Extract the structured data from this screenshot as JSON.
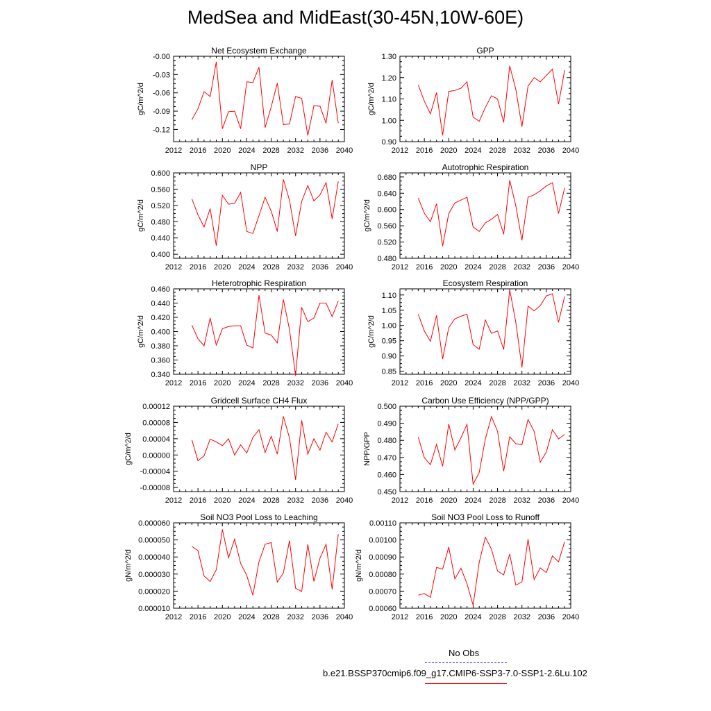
{
  "title": "MedSea and MidEast(30-45N,10W-60E)",
  "legend": {
    "obs_label": "No Obs",
    "obs_color": "#3a3aff",
    "sim_label": "b.e21.BSSP370cmip6.f09_g17.CMIP6-SSP3-7.0-SSP1-2.6Lu.102",
    "sim_color": "#ff0000"
  },
  "chart_data": [
    {
      "type": "line",
      "title": "Net Ecosystem Exchange",
      "ylabel": "gC/m^2/d",
      "xlim": [
        2012,
        2040
      ],
      "x_ticks": [
        "2012",
        "2016",
        "2020",
        "2024",
        "2028",
        "2032",
        "2036",
        "2040"
      ],
      "ylim": [
        -0.14,
        0.0
      ],
      "y_ticks": [
        "-0.00",
        "-0.03",
        "-0.06",
        "-0.09",
        "-0.12"
      ],
      "y_tick_values": [
        0.0,
        -0.03,
        -0.06,
        -0.09,
        -0.12
      ],
      "series": [
        {
          "color": "#ff0000",
          "x": [
            2015,
            2016,
            2017,
            2018,
            2019,
            2020,
            2021,
            2022,
            2023,
            2024,
            2025,
            2026,
            2027,
            2028,
            2029,
            2030,
            2031,
            2032,
            2033,
            2034,
            2035,
            2036,
            2037,
            2038,
            2039
          ],
          "values": [
            -0.104,
            -0.086,
            -0.058,
            -0.066,
            -0.009,
            -0.119,
            -0.091,
            -0.09,
            -0.119,
            -0.042,
            -0.043,
            -0.018,
            -0.117,
            -0.083,
            -0.044,
            -0.112,
            -0.111,
            -0.066,
            -0.069,
            -0.13,
            -0.081,
            -0.082,
            -0.11,
            -0.039,
            -0.11
          ]
        }
      ]
    },
    {
      "type": "line",
      "title": "GPP",
      "ylabel": "gC/m^2/d",
      "xlim": [
        2012,
        2040
      ],
      "x_ticks": [
        "2012",
        "2016",
        "2020",
        "2024",
        "2028",
        "2032",
        "2036",
        "2040"
      ],
      "ylim": [
        0.9,
        1.3
      ],
      "y_ticks": [
        "1.30",
        "1.20",
        "1.10",
        "1.00",
        "0.90"
      ],
      "y_tick_values": [
        1.3,
        1.2,
        1.1,
        1.0,
        0.9
      ],
      "series": [
        {
          "color": "#ff0000",
          "x": [
            2015,
            2016,
            2017,
            2018,
            2019,
            2020,
            2021,
            2022,
            2023,
            2024,
            2025,
            2026,
            2027,
            2028,
            2029,
            2030,
            2031,
            2032,
            2033,
            2034,
            2035,
            2036,
            2037,
            2038,
            2039
          ],
          "values": [
            1.165,
            1.09,
            1.03,
            1.13,
            0.93,
            1.135,
            1.14,
            1.15,
            1.18,
            1.015,
            0.995,
            1.06,
            1.115,
            1.1,
            0.99,
            1.255,
            1.145,
            0.97,
            1.16,
            1.2,
            1.18,
            1.21,
            1.24,
            1.075,
            1.235
          ]
        }
      ]
    },
    {
      "type": "line",
      "title": "NPP",
      "ylabel": "gC/m^2/d",
      "xlim": [
        2012,
        2040
      ],
      "x_ticks": [
        "2012",
        "2016",
        "2020",
        "2024",
        "2028",
        "2032",
        "2036",
        "2040"
      ],
      "ylim": [
        0.39,
        0.6
      ],
      "y_ticks": [
        "0.600",
        "0.560",
        "0.520",
        "0.480",
        "0.440",
        "0.400"
      ],
      "y_tick_values": [
        0.6,
        0.56,
        0.52,
        0.48,
        0.44,
        0.4
      ],
      "series": [
        {
          "color": "#ff0000",
          "x": [
            2015,
            2016,
            2017,
            2018,
            2019,
            2020,
            2021,
            2022,
            2023,
            2024,
            2025,
            2026,
            2027,
            2028,
            2029,
            2030,
            2031,
            2032,
            2033,
            2034,
            2035,
            2036,
            2037,
            2038,
            2039
          ],
          "values": [
            0.536,
            0.497,
            0.467,
            0.512,
            0.421,
            0.545,
            0.523,
            0.525,
            0.552,
            0.456,
            0.451,
            0.495,
            0.54,
            0.506,
            0.456,
            0.584,
            0.533,
            0.445,
            0.53,
            0.569,
            0.531,
            0.546,
            0.576,
            0.487,
            0.579
          ]
        }
      ]
    },
    {
      "type": "line",
      "title": "Autotrophic Respiration",
      "ylabel": "gC/m^2/d",
      "xlim": [
        2012,
        2040
      ],
      "x_ticks": [
        "2012",
        "2016",
        "2020",
        "2024",
        "2028",
        "2032",
        "2036",
        "2040"
      ],
      "ylim": [
        0.48,
        0.69
      ],
      "y_ticks": [
        "0.680",
        "0.640",
        "0.600",
        "0.560",
        "0.520",
        "0.480"
      ],
      "y_tick_values": [
        0.68,
        0.64,
        0.6,
        0.56,
        0.52,
        0.48
      ],
      "series": [
        {
          "color": "#ff0000",
          "x": [
            2015,
            2016,
            2017,
            2018,
            2019,
            2020,
            2021,
            2022,
            2023,
            2024,
            2025,
            2026,
            2027,
            2028,
            2029,
            2030,
            2031,
            2032,
            2033,
            2034,
            2035,
            2036,
            2037,
            2038,
            2039
          ],
          "values": [
            0.628,
            0.591,
            0.57,
            0.614,
            0.51,
            0.59,
            0.616,
            0.623,
            0.63,
            0.557,
            0.546,
            0.567,
            0.576,
            0.588,
            0.539,
            0.672,
            0.609,
            0.524,
            0.63,
            0.636,
            0.646,
            0.658,
            0.666,
            0.59,
            0.653
          ]
        }
      ]
    },
    {
      "type": "line",
      "title": "Heterotrophic Respiration",
      "ylabel": "gC/m^2/d",
      "xlim": [
        2012,
        2040
      ],
      "x_ticks": [
        "2012",
        "2016",
        "2020",
        "2024",
        "2028",
        "2032",
        "2036",
        "2040"
      ],
      "ylim": [
        0.34,
        0.46
      ],
      "y_ticks": [
        "0.460",
        "0.440",
        "0.420",
        "0.400",
        "0.380",
        "0.360",
        "0.340"
      ],
      "y_tick_values": [
        0.46,
        0.44,
        0.42,
        0.4,
        0.38,
        0.36,
        0.34
      ],
      "series": [
        {
          "color": "#ff0000",
          "x": [
            2015,
            2016,
            2017,
            2018,
            2019,
            2020,
            2021,
            2022,
            2023,
            2024,
            2025,
            2026,
            2027,
            2028,
            2029,
            2030,
            2031,
            2032,
            2033,
            2034,
            2035,
            2036,
            2037,
            2038,
            2039
          ],
          "values": [
            0.409,
            0.39,
            0.38,
            0.419,
            0.381,
            0.404,
            0.407,
            0.408,
            0.408,
            0.381,
            0.377,
            0.451,
            0.398,
            0.395,
            0.384,
            0.445,
            0.403,
            0.338,
            0.434,
            0.414,
            0.419,
            0.44,
            0.44,
            0.421,
            0.443
          ]
        }
      ]
    },
    {
      "type": "line",
      "title": "Ecosystem Respiration",
      "ylabel": "gC/m^2/d",
      "xlim": [
        2012,
        2040
      ],
      "x_ticks": [
        "2012",
        "2016",
        "2020",
        "2024",
        "2028",
        "2032",
        "2036",
        "2040"
      ],
      "ylim": [
        0.84,
        1.12
      ],
      "y_ticks": [
        "1.10",
        "1.05",
        "1.00",
        "0.95",
        "0.90",
        "0.85"
      ],
      "y_tick_values": [
        1.1,
        1.05,
        1.0,
        0.95,
        0.9,
        0.85
      ],
      "series": [
        {
          "color": "#ff0000",
          "x": [
            2015,
            2016,
            2017,
            2018,
            2019,
            2020,
            2021,
            2022,
            2023,
            2024,
            2025,
            2026,
            2027,
            2028,
            2029,
            2030,
            2031,
            2032,
            2033,
            2034,
            2035,
            2036,
            2037,
            2038,
            2039
          ],
          "values": [
            1.037,
            0.982,
            0.948,
            1.033,
            0.89,
            0.993,
            1.022,
            1.03,
            1.037,
            0.937,
            0.922,
            1.018,
            0.974,
            0.982,
            0.921,
            1.117,
            1.01,
            0.862,
            1.063,
            1.048,
            1.065,
            1.097,
            1.104,
            1.01,
            1.095
          ]
        }
      ]
    },
    {
      "type": "line",
      "title": "Gridcell Surface CH4 Flux",
      "ylabel": "gC/m^2/d",
      "xlim": [
        2012,
        2040
      ],
      "x_ticks": [
        "2012",
        "2016",
        "2020",
        "2024",
        "2028",
        "2032",
        "2036",
        "2040"
      ],
      "ylim": [
        -9e-05,
        0.00012
      ],
      "y_ticks": [
        "0.00012",
        "0.00008",
        "0.00004",
        "0.00000",
        "-0.00004",
        "-0.00008"
      ],
      "y_tick_values": [
        0.00012,
        8e-05,
        4e-05,
        0.0,
        -4e-05,
        -8e-05
      ],
      "series": [
        {
          "color": "#ff0000",
          "x": [
            2015,
            2016,
            2017,
            2018,
            2019,
            2020,
            2021,
            2022,
            2023,
            2024,
            2025,
            2026,
            2027,
            2028,
            2029,
            2030,
            2031,
            2032,
            2033,
            2034,
            2035,
            2036,
            2037,
            2038,
            2039
          ],
          "values": [
            3.7e-05,
            -1.4e-05,
            -2e-06,
            3.9e-05,
            3.2e-05,
            2.3e-05,
            4e-05,
            0.0,
            2.5e-05,
            5e-06,
            4.3e-05,
            6.2e-05,
            6e-06,
            4.6e-05,
            2e-06,
            9.5e-05,
            4.2e-05,
            -6.1e-05,
            8.5e-05,
            2e-06,
            4e-05,
            1.2e-05,
            5.6e-05,
            3.2e-05,
            7.7e-05
          ]
        }
      ]
    },
    {
      "type": "line",
      "title": "Carbon Use Efficiency (NPP/GPP)",
      "ylabel": "NPP/GPP",
      "xlim": [
        2012,
        2040
      ],
      "x_ticks": [
        "2012",
        "2016",
        "2020",
        "2024",
        "2028",
        "2032",
        "2036",
        "2040"
      ],
      "ylim": [
        0.45,
        0.5
      ],
      "y_ticks": [
        "0.500",
        "0.490",
        "0.480",
        "0.470",
        "0.460",
        "0.450"
      ],
      "y_tick_values": [
        0.5,
        0.49,
        0.48,
        0.47,
        0.46,
        0.45
      ],
      "series": [
        {
          "color": "#ff0000",
          "x": [
            2015,
            2016,
            2017,
            2018,
            2019,
            2020,
            2021,
            2022,
            2023,
            2024,
            2025,
            2026,
            2027,
            2028,
            2029,
            2030,
            2031,
            2032,
            2033,
            2034,
            2035,
            2036,
            2037,
            2038,
            2039
          ],
          "values": [
            0.4818,
            0.4699,
            0.4657,
            0.4776,
            0.4648,
            0.4895,
            0.4744,
            0.4815,
            0.4894,
            0.4543,
            0.4612,
            0.4808,
            0.4939,
            0.4853,
            0.4619,
            0.4821,
            0.478,
            0.4775,
            0.4922,
            0.4852,
            0.4672,
            0.4732,
            0.4862,
            0.4808,
            0.4835
          ]
        }
      ]
    },
    {
      "type": "line",
      "title": "Soil NO3 Pool Loss to Leaching",
      "ylabel": "gN/m^2/d",
      "xlim": [
        2012,
        2040
      ],
      "x_ticks": [
        "2012",
        "2016",
        "2020",
        "2024",
        "2028",
        "2032",
        "2036",
        "2040"
      ],
      "ylim": [
        1e-05,
        6e-05
      ],
      "y_ticks": [
        "0.000060",
        "0.000050",
        "0.000040",
        "0.000030",
        "0.000020",
        "0.000010"
      ],
      "y_tick_values": [
        6e-05,
        5e-05,
        4e-05,
        3e-05,
        2e-05,
        1e-05
      ],
      "series": [
        {
          "color": "#ff0000",
          "x": [
            2015,
            2016,
            2017,
            2018,
            2019,
            2020,
            2021,
            2022,
            2023,
            2024,
            2025,
            2026,
            2027,
            2028,
            2029,
            2030,
            2031,
            2032,
            2033,
            2034,
            2035,
            2036,
            2037,
            2038,
            2039
          ],
          "values": [
            4.62e-05,
            4.37e-05,
            2.89e-05,
            2.57e-05,
            3.25e-05,
            5.61e-05,
            3.96e-05,
            5.04e-05,
            3.62e-05,
            2.92e-05,
            1.76e-05,
            3.72e-05,
            4.75e-05,
            4.84e-05,
            2.53e-05,
            3.06e-05,
            4.96e-05,
            2.17e-05,
            1.98e-05,
            4.74e-05,
            2.57e-05,
            3.94e-05,
            4.74e-05,
            2.1e-05,
            5.34e-05
          ]
        }
      ]
    },
    {
      "type": "line",
      "title": "Soil NO3 Pool Loss to Runoff",
      "ylabel": "gN/m^2/d",
      "xlim": [
        2012,
        2040
      ],
      "x_ticks": [
        "2012",
        "2016",
        "2020",
        "2024",
        "2028",
        "2032",
        "2036",
        "2040"
      ],
      "ylim": [
        0.0006,
        0.0011
      ],
      "y_ticks": [
        "0.00110",
        "0.00100",
        "0.00090",
        "0.00080",
        "0.00070",
        "0.00060"
      ],
      "y_tick_values": [
        0.0011,
        0.001,
        0.0009,
        0.0008,
        0.0007,
        0.0006
      ],
      "series": [
        {
          "color": "#ff0000",
          "x": [
            2015,
            2016,
            2017,
            2018,
            2019,
            2020,
            2021,
            2022,
            2023,
            2024,
            2025,
            2026,
            2027,
            2028,
            2029,
            2030,
            2031,
            2032,
            2033,
            2034,
            2035,
            2036,
            2037,
            2038,
            2039
          ],
          "values": [
            0.000677,
            0.000686,
            0.000664,
            0.000839,
            0.000829,
            0.000958,
            0.000772,
            0.000834,
            0.000743,
            0.000617,
            0.000869,
            0.001016,
            0.000946,
            0.000818,
            0.000795,
            0.000918,
            0.000735,
            0.000754,
            0.001004,
            0.000768,
            0.000836,
            0.000809,
            0.000906,
            0.000872,
            0.000989
          ]
        }
      ]
    }
  ]
}
